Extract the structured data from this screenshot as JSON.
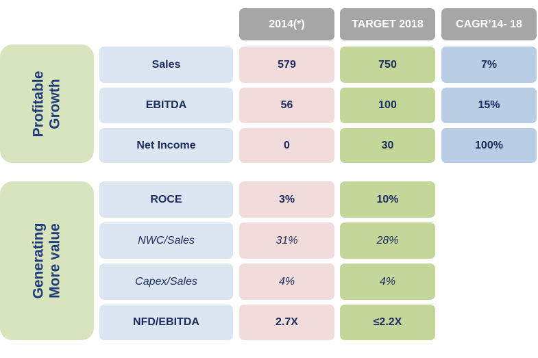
{
  "headers": {
    "y2014": "2014(*)",
    "target": "TARGET 2018",
    "cagr": "CAGR’14- 18"
  },
  "groups": {
    "profitable": {
      "line1": "Profitable",
      "line2": "Growth"
    },
    "generating": {
      "line1": "Generating",
      "line2": "More value"
    }
  },
  "rows": [
    {
      "metric": "Sales",
      "y2014": "579",
      "target": "750",
      "cagr": "7%"
    },
    {
      "metric": "EBITDA",
      "y2014": "56",
      "target": "100",
      "cagr": "15%"
    },
    {
      "metric": "Net Income",
      "y2014": "0",
      "target": "30",
      "cagr": "100%"
    },
    {
      "metric": "ROCE",
      "y2014": "3%",
      "target": "10%"
    },
    {
      "metric": "NWC/Sales",
      "y2014": "31%",
      "target": "28%"
    },
    {
      "metric": "Capex/Sales",
      "y2014": "4%",
      "target": "4%"
    },
    {
      "metric": "NFD/EBITDA",
      "y2014": "2.7X",
      "target": "≤2.2X"
    }
  ]
}
